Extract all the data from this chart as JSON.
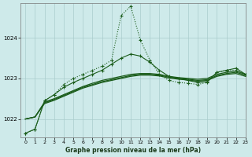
{
  "bg_color": "#ceeaea",
  "grid_color": "#aacccc",
  "line_color": "#1a5c1a",
  "title": "Graphe pression niveau de la mer (hPa)",
  "xlim": [
    -0.5,
    23
  ],
  "ylim": [
    1021.55,
    1024.85
  ],
  "yticks": [
    1022,
    1023,
    1024
  ],
  "xticks": [
    0,
    1,
    2,
    3,
    4,
    5,
    6,
    7,
    8,
    9,
    10,
    11,
    12,
    13,
    14,
    15,
    16,
    17,
    18,
    19,
    20,
    21,
    22,
    23
  ],
  "dotted_spike": [
    1021.65,
    1021.75,
    1022.45,
    1022.6,
    1022.85,
    1023.0,
    1023.1,
    1023.2,
    1023.3,
    1023.45,
    1024.55,
    1024.78,
    1023.95,
    1023.45,
    1023.1,
    1022.95,
    1022.9,
    1022.88,
    1022.85,
    1022.9,
    1023.15,
    1023.2,
    1023.2,
    1023.1
  ],
  "solid_spike": [
    1021.65,
    1021.75,
    1022.45,
    1022.6,
    1022.78,
    1022.9,
    1023.0,
    1023.1,
    1023.2,
    1023.35,
    1023.5,
    1023.6,
    1023.55,
    1023.4,
    1023.2,
    1023.05,
    1023.0,
    1022.95,
    1022.9,
    1022.92,
    1023.15,
    1023.2,
    1023.25,
    1023.1
  ],
  "trend1": [
    1022.0,
    1022.05,
    1022.42,
    1022.5,
    1022.6,
    1022.7,
    1022.8,
    1022.88,
    1022.95,
    1023.0,
    1023.05,
    1023.1,
    1023.12,
    1023.12,
    1023.1,
    1023.05,
    1023.02,
    1023.0,
    1022.98,
    1023.0,
    1023.1,
    1023.15,
    1023.18,
    1023.1
  ],
  "trend2": [
    1022.0,
    1022.05,
    1022.4,
    1022.48,
    1022.58,
    1022.68,
    1022.78,
    1022.85,
    1022.92,
    1022.97,
    1023.02,
    1023.07,
    1023.1,
    1023.1,
    1023.08,
    1023.03,
    1023.0,
    1022.98,
    1022.95,
    1022.97,
    1023.07,
    1023.12,
    1023.15,
    1023.08
  ],
  "trend3": [
    1022.0,
    1022.05,
    1022.38,
    1022.46,
    1022.56,
    1022.66,
    1022.76,
    1022.83,
    1022.9,
    1022.95,
    1023.0,
    1023.05,
    1023.08,
    1023.08,
    1023.06,
    1023.01,
    1022.98,
    1022.96,
    1022.93,
    1022.95,
    1023.05,
    1023.1,
    1023.12,
    1023.05
  ]
}
